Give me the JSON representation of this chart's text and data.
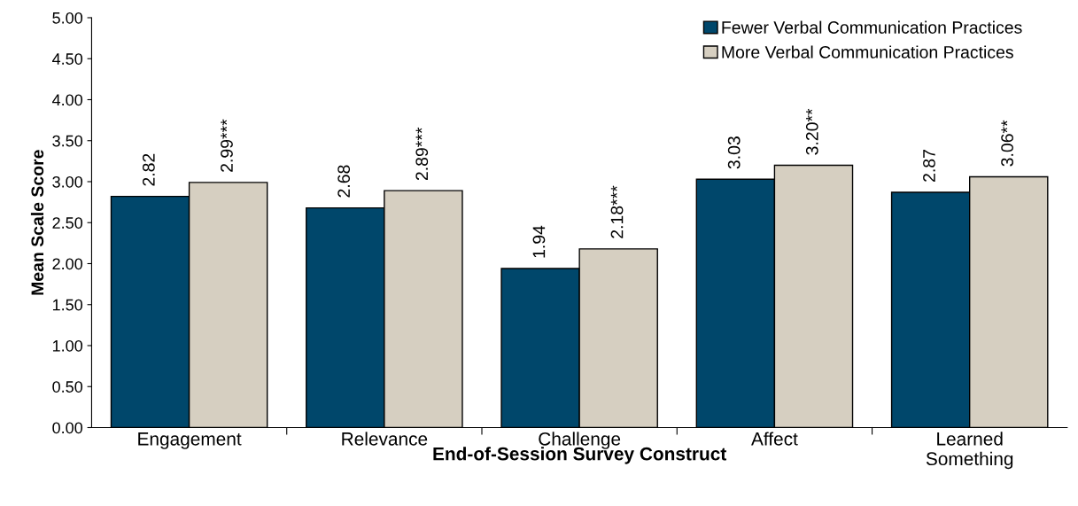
{
  "chart_data": {
    "type": "bar",
    "xlabel": "End-of-Session Survey Construct",
    "ylabel": "Mean Scale Score",
    "categories": [
      "Engagement",
      "Relevance",
      "Challenge",
      "Affect",
      "Learned\nSomething"
    ],
    "series": [
      {
        "name": "Fewer Verbal Communication Practices",
        "color": "#00476b",
        "values": [
          2.82,
          2.68,
          1.94,
          3.03,
          2.87
        ],
        "value_labels": [
          "2.82",
          "2.68",
          "1.94",
          "3.03",
          "2.87"
        ]
      },
      {
        "name": "More Verbal Communication Practices",
        "color": "#d6cfc1",
        "values": [
          2.99,
          2.89,
          2.18,
          3.2,
          3.06
        ],
        "value_labels": [
          "2.99***",
          "2.89***",
          "2.18***",
          "3.20**",
          "3.06**"
        ]
      }
    ],
    "ylim": [
      0,
      5
    ],
    "yticks": [
      {
        "value": 0,
        "label": "0.00"
      },
      {
        "value": 0.5,
        "label": "0.50"
      },
      {
        "value": 1,
        "label": "1.00"
      },
      {
        "value": 1.5,
        "label": "1.50"
      },
      {
        "value": 2,
        "label": "2.00"
      },
      {
        "value": 2.5,
        "label": "2.50"
      },
      {
        "value": 3,
        "label": "3.00"
      },
      {
        "value": 3.5,
        "label": "3.50"
      },
      {
        "value": 4,
        "label": "4.00"
      },
      {
        "value": 4.5,
        "label": "4.50"
      },
      {
        "value": 5,
        "label": "5.00"
      }
    ],
    "grid": false,
    "legend": "top right"
  }
}
